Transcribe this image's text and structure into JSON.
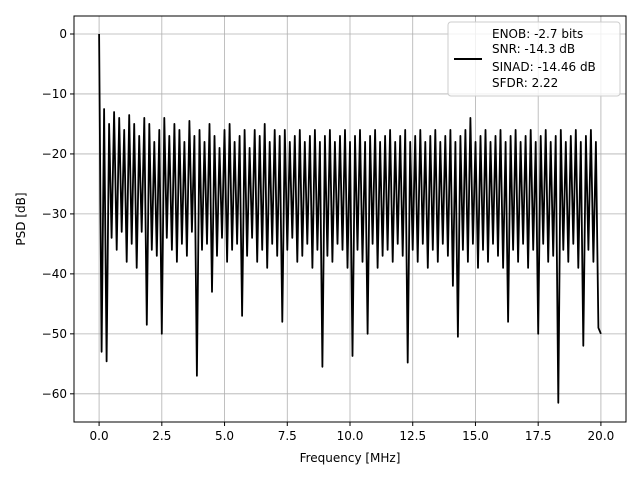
{
  "chart_data": {
    "type": "line",
    "title": "",
    "xlabel": "Frequency [MHz]",
    "ylabel": "PSD [dB]",
    "xlim": [
      -1.0,
      21.0
    ],
    "ylim": [
      -64.7,
      3.0
    ],
    "grid": true,
    "legend_placement": "top-right",
    "line_color": "#000000",
    "xticks": [
      0.0,
      2.5,
      5.0,
      7.5,
      10.0,
      12.5,
      15.0,
      17.5,
      20.0
    ],
    "xtick_labels": [
      "0.0",
      "2.5",
      "5.0",
      "7.5",
      "10.0",
      "12.5",
      "15.0",
      "17.5",
      "20.0"
    ],
    "yticks": [
      0,
      -10,
      -20,
      -30,
      -40,
      -50,
      -60
    ],
    "ytick_labels": [
      "0",
      "−10",
      "−20",
      "−30",
      "−40",
      "−50",
      "−60"
    ],
    "legend_lines": [
      "ENOB: -2.7 bits",
      "SNR: -14.3 dB",
      "SINAD: -14.46 dB",
      "SFDR: 2.22"
    ],
    "x_start": 0.0,
    "x_step": 0.1,
    "values": [
      0,
      -53,
      -12.5,
      -54.6,
      -15,
      -34,
      -13,
      -36,
      -14,
      -33,
      -16,
      -38,
      -13.5,
      -35,
      -15,
      -39,
      -17,
      -33,
      -14,
      -48.5,
      -15,
      -36,
      -18,
      -37,
      -16,
      -50,
      -14,
      -34,
      -17,
      -36,
      -15,
      -38,
      -16,
      -35,
      -18,
      -37,
      -14.5,
      -33,
      -17,
      -57,
      -16,
      -36,
      -18,
      -35,
      -15,
      -43,
      -17,
      -37,
      -19,
      -34,
      -16,
      -38,
      -15,
      -36,
      -18,
      -35,
      -17,
      -47,
      -16,
      -37,
      -19,
      -34,
      -16,
      -38,
      -17,
      -36,
      -15,
      -39,
      -18,
      -35,
      -16,
      -37,
      -17,
      -48,
      -16,
      -36,
      -18,
      -34,
      -17,
      -38,
      -16,
      -37,
      -18,
      -35,
      -17,
      -39,
      -16,
      -36,
      -18,
      -55.5,
      -17,
      -37,
      -16,
      -38,
      -18,
      -35,
      -17,
      -36,
      -16,
      -39,
      -18,
      -53.7,
      -17,
      -36,
      -16,
      -38,
      -18,
      -50,
      -17,
      -35,
      -16,
      -39,
      -18,
      -37,
      -17,
      -36,
      -16,
      -38,
      -18,
      -35,
      -17,
      -37,
      -16,
      -54.8,
      -18,
      -36,
      -17,
      -38,
      -16,
      -35,
      -18,
      -39,
      -17,
      -36,
      -16,
      -38,
      -18,
      -35,
      -17,
      -37,
      -16,
      -42,
      -18,
      -50.5,
      -17,
      -36,
      -16,
      -38,
      -14,
      -35,
      -18,
      -39,
      -17,
      -36,
      -16,
      -38,
      -18,
      -35,
      -17,
      -37,
      -16,
      -39,
      -18,
      -48,
      -17,
      -36,
      -16,
      -38,
      -18,
      -35,
      -17,
      -39,
      -16,
      -36,
      -18,
      -50,
      -17,
      -35,
      -16,
      -38,
      -18,
      -37,
      -17,
      -61.5,
      -16,
      -36,
      -18,
      -38,
      -17,
      -35,
      -16,
      -39,
      -18,
      -52,
      -17,
      -36,
      -16,
      -38,
      -18,
      -49,
      -50
    ]
  }
}
